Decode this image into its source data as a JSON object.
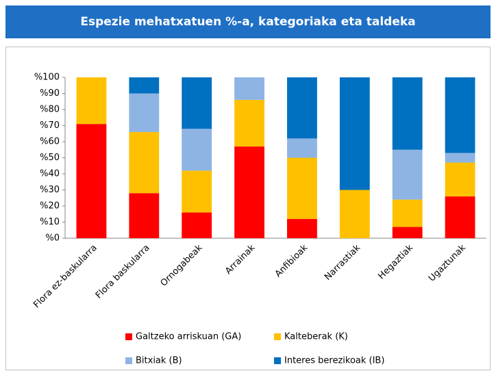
{
  "chart_data": {
    "type": "stacked_bar",
    "title": "Espezie mehatxatuen %-a, kategoriaka eta taldeka",
    "categories": [
      "Flora ez-baskularra",
      "Flora baskularra",
      "Ornogabeak",
      "Arrainak",
      "Anfibioak",
      "Narrastiak",
      "Hegaztiak",
      "Ugaztunak"
    ],
    "series": [
      {
        "name": "Galtzeko arriskuan (GA)",
        "color": "#ff0000",
        "values": [
          71,
          28,
          16,
          57,
          12,
          0,
          7,
          26
        ]
      },
      {
        "name": "Kalteberak (K)",
        "color": "#ffc000",
        "values": [
          29,
          38,
          26,
          29,
          38,
          30,
          17,
          21
        ]
      },
      {
        "name": "Bitxiak (B)",
        "color": "#8eb4e3",
        "values": [
          0,
          24,
          26,
          14,
          12,
          0,
          31,
          6
        ]
      },
      {
        "name": "Interes berezikoak (IB)",
        "color": "#0070c0",
        "values": [
          0,
          10,
          32,
          0,
          38,
          70,
          45,
          47
        ]
      }
    ],
    "ylim": [
      0,
      100
    ],
    "yticks": [
      {
        "value": 0,
        "label": "%0"
      },
      {
        "value": 10,
        "label": "%10"
      },
      {
        "value": 20,
        "label": "%20"
      },
      {
        "value": 30,
        "label": "%30"
      },
      {
        "value": 40,
        "label": "%40"
      },
      {
        "value": 50,
        "label": "%50"
      },
      {
        "value": 60,
        "label": "%60"
      },
      {
        "value": 70,
        "label": "%70"
      },
      {
        "value": 80,
        "label": "%80"
      },
      {
        "value": 90,
        "label": "%90"
      },
      {
        "value": 100,
        "label": "%100"
      }
    ],
    "grid": false
  }
}
